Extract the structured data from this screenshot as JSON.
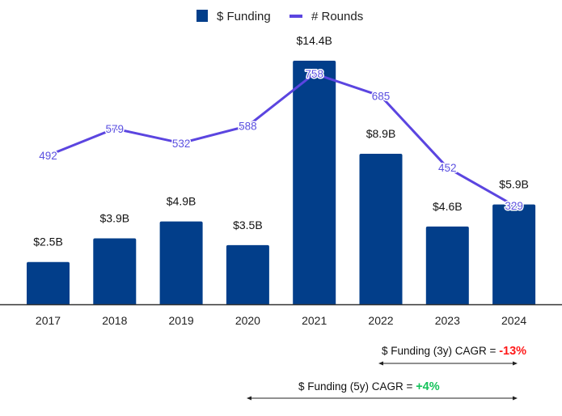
{
  "chart_data": {
    "type": "bar",
    "title": "",
    "xlabel": "",
    "ylabel": "",
    "categories": [
      "2017",
      "2018",
      "2019",
      "2020",
      "2021",
      "2022",
      "2023",
      "2024"
    ],
    "series": [
      {
        "name": "$ Funding",
        "type": "bar",
        "unit": "B USD",
        "color": "#023e8a",
        "values": [
          2.5,
          3.9,
          4.9,
          3.5,
          14.4,
          8.9,
          4.6,
          5.9
        ],
        "labels": [
          "$2.5B",
          "$3.9B",
          "$4.9B",
          "$3.5B",
          "$14.4B",
          "$8.9B",
          "$4.6B",
          "$5.9B"
        ]
      },
      {
        "name": "# Rounds",
        "type": "line",
        "color": "#5b45e0",
        "values": [
          492,
          579,
          532,
          588,
          758,
          685,
          452,
          329
        ],
        "labels": [
          "492",
          "579",
          "532",
          "588",
          "758",
          "685",
          "452",
          "329"
        ]
      }
    ],
    "legend": {
      "position": "top-center",
      "entries": [
        "$ Funding",
        "# Rounds"
      ]
    },
    "grid": false,
    "annotations": [
      {
        "text": "$ Funding (3y) CAGR = ",
        "value": "-13%",
        "value_color": "#ff1a1a",
        "span": [
          "2022",
          "2024"
        ]
      },
      {
        "text": "$ Funding (5y) CAGR = ",
        "value": "+4%",
        "value_color": "#14c25a",
        "span": [
          "2020",
          "2024"
        ]
      }
    ]
  }
}
